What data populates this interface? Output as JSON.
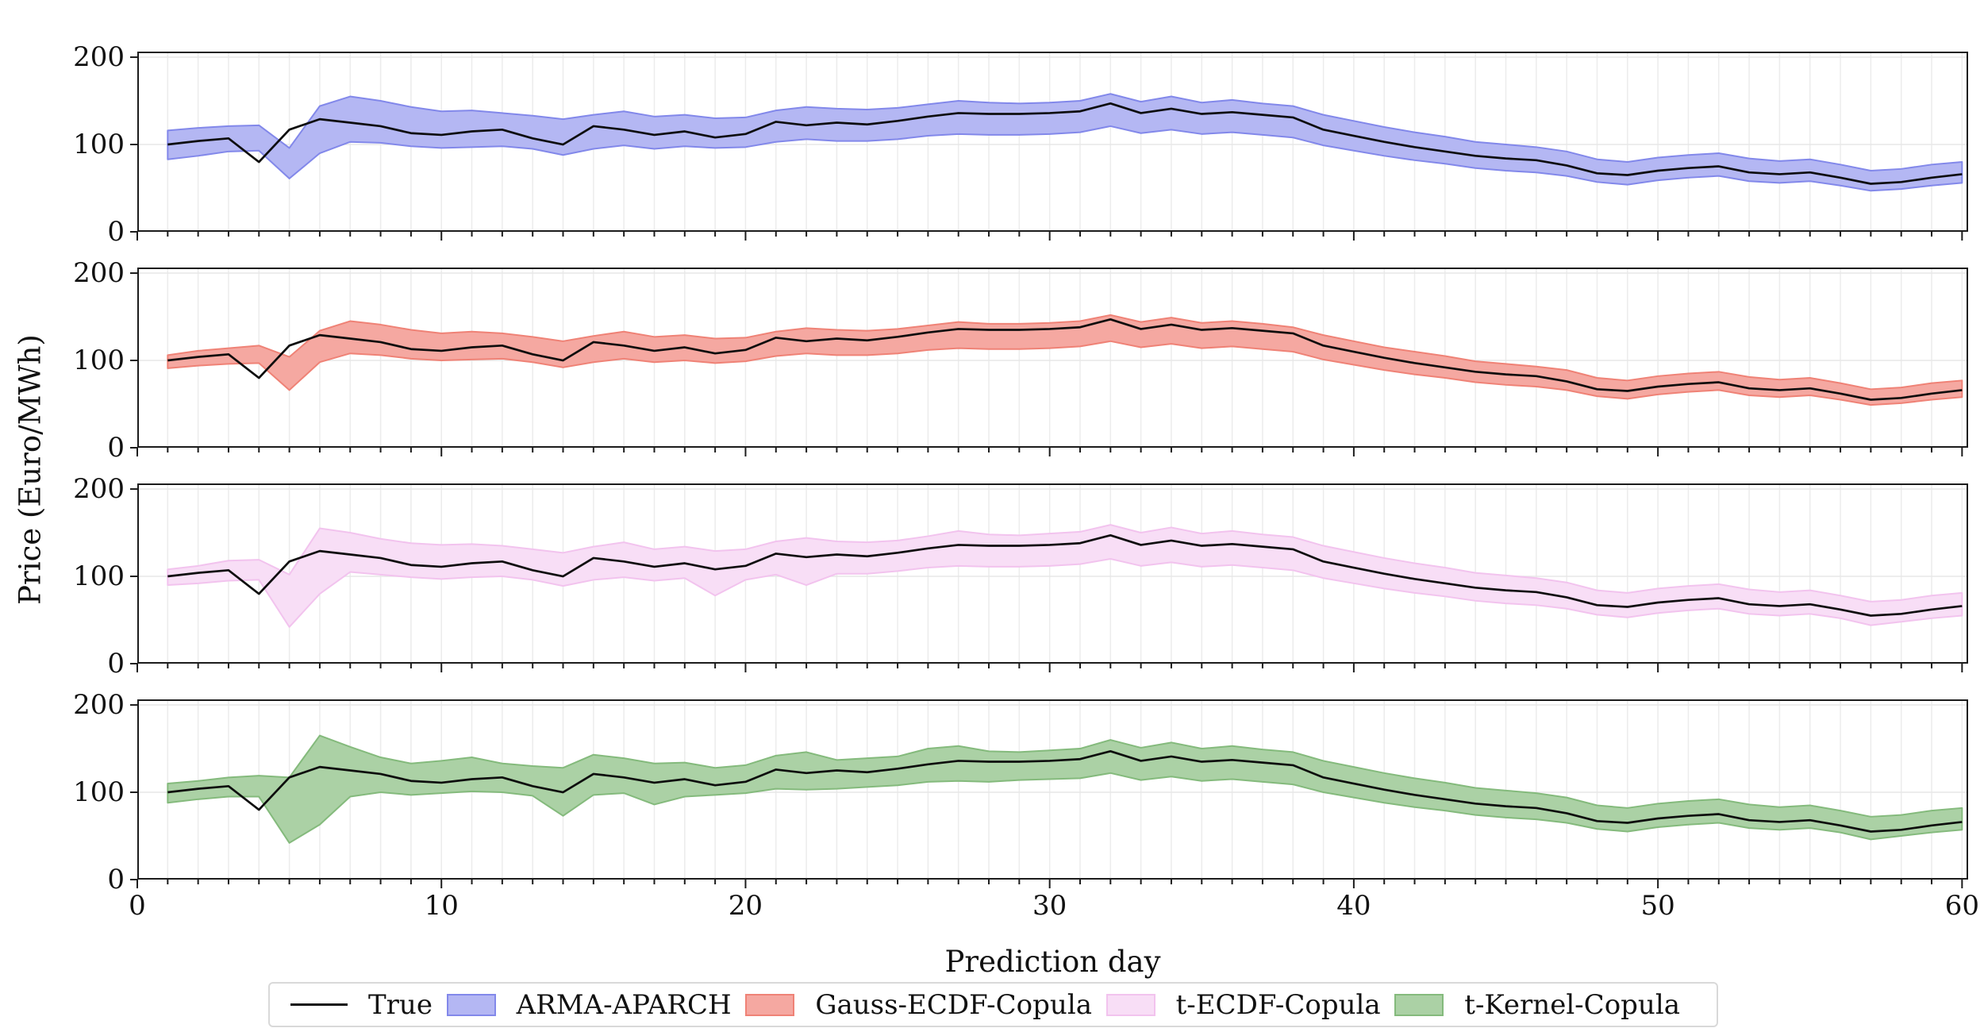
{
  "figure": {
    "ylabel": "Price (Euro/MWh)",
    "xlabel": "Prediction day",
    "background": "#ffffff",
    "spine_color": "#1c1c1c",
    "grid_color_vertical": "#ececec",
    "grid_color_horizontal": "#e7e7e7",
    "x_tick_labels": [
      "0",
      "10",
      "20",
      "30",
      "40",
      "50",
      "60"
    ],
    "y_tick_labels": [
      "200",
      "100",
      "0"
    ]
  },
  "legend": {
    "items": [
      {
        "label": "True",
        "type": "line",
        "fill": "#111111",
        "edge": "#111111"
      },
      {
        "label": "ARMA-APARCH",
        "type": "patch",
        "fill": "#b4b7f3",
        "edge": "#8288ea"
      },
      {
        "label": "Gauss-ECDF-Copula",
        "type": "patch",
        "fill": "#f5a8a1",
        "edge": "#ef8276"
      },
      {
        "label": "t-ECDF-Copula",
        "type": "patch",
        "fill": "#f8def6",
        "edge": "#f2c3ee"
      },
      {
        "label": "t-Kernel-Copula",
        "type": "patch",
        "fill": "#abd1a5",
        "edge": "#84ba7c"
      }
    ]
  },
  "chart_data": {
    "type": "line",
    "title": "",
    "xlabel": "Prediction day",
    "ylabel": "Price (Euro/MWh)",
    "xlim": [
      0,
      60.2
    ],
    "ylim": [
      0,
      206.4
    ],
    "x_ticks": [
      0,
      10,
      20,
      30,
      40,
      50,
      60
    ],
    "y_ticks": [
      0,
      100,
      200
    ],
    "grid": true,
    "legend_position": "bottom",
    "x": [
      1,
      2,
      3,
      4,
      5,
      6,
      7,
      8,
      9,
      10,
      11,
      12,
      13,
      14,
      15,
      16,
      17,
      18,
      19,
      20,
      21,
      22,
      23,
      24,
      25,
      26,
      27,
      28,
      29,
      30,
      31,
      32,
      33,
      34,
      35,
      36,
      37,
      38,
      39,
      40,
      41,
      42,
      43,
      44,
      45,
      46,
      47,
      48,
      49,
      50,
      51,
      52,
      53,
      54,
      55,
      56,
      57,
      58,
      59,
      60
    ],
    "true_series": {
      "name": "True",
      "color": "#0d0d0d",
      "values": [
        100,
        104,
        107,
        80,
        117,
        129,
        125,
        121,
        113,
        111,
        115,
        117,
        107,
        100,
        121,
        117,
        111,
        115,
        108,
        112,
        126,
        122,
        125,
        123,
        127,
        132,
        136,
        135,
        135,
        136,
        138,
        147,
        136,
        141,
        135,
        137,
        134,
        131,
        117,
        110,
        103,
        97,
        92,
        87,
        84,
        82,
        76,
        67,
        65,
        70,
        73,
        75,
        68,
        66,
        68,
        62,
        55,
        57,
        62,
        66
      ]
    },
    "panels": [
      {
        "model": "ARMA-APARCH",
        "band_fill": "#b4b7f3",
        "band_edge": "#8288ea",
        "lower": [
          83,
          87,
          92,
          93,
          61,
          90,
          103,
          102,
          98,
          96,
          97,
          98,
          95,
          88,
          95,
          99,
          95,
          98,
          96,
          97,
          103,
          106,
          104,
          104,
          106,
          110,
          112,
          111,
          111,
          112,
          114,
          121,
          113,
          117,
          112,
          114,
          111,
          108,
          99,
          93,
          87,
          82,
          78,
          73,
          70,
          68,
          64,
          57,
          54,
          59,
          62,
          64,
          58,
          56,
          58,
          53,
          47,
          49,
          53,
          56
        ],
        "upper": [
          116,
          119,
          121,
          122,
          96,
          144,
          155,
          150,
          143,
          138,
          139,
          136,
          133,
          129,
          134,
          138,
          132,
          134,
          130,
          131,
          139,
          143,
          141,
          140,
          142,
          146,
          150,
          148,
          147,
          148,
          150,
          158,
          149,
          155,
          148,
          151,
          147,
          144,
          134,
          127,
          120,
          114,
          109,
          103,
          100,
          97,
          92,
          83,
          80,
          85,
          88,
          90,
          84,
          81,
          83,
          77,
          70,
          72,
          77,
          80
        ]
      },
      {
        "model": "Gauss-ECDF-Copula",
        "band_fill": "#f5a8a1",
        "band_edge": "#ef8276",
        "lower": [
          91,
          94,
          96,
          97,
          66,
          98,
          108,
          106,
          102,
          100,
          101,
          102,
          98,
          92,
          98,
          102,
          98,
          100,
          97,
          99,
          105,
          108,
          106,
          106,
          108,
          112,
          114,
          113,
          113,
          114,
          116,
          122,
          115,
          119,
          114,
          116,
          113,
          110,
          101,
          95,
          89,
          84,
          80,
          75,
          72,
          70,
          66,
          59,
          56,
          61,
          64,
          66,
          60,
          58,
          60,
          55,
          49,
          51,
          55,
          58
        ],
        "upper": [
          106,
          111,
          114,
          117,
          104,
          134,
          145,
          141,
          135,
          131,
          133,
          131,
          127,
          122,
          128,
          133,
          127,
          129,
          125,
          126,
          133,
          137,
          135,
          134,
          136,
          140,
          144,
          142,
          142,
          143,
          145,
          152,
          144,
          149,
          143,
          145,
          142,
          138,
          129,
          122,
          115,
          110,
          105,
          99,
          96,
          93,
          89,
          80,
          77,
          82,
          85,
          87,
          81,
          78,
          80,
          74,
          67,
          69,
          74,
          77
        ]
      },
      {
        "model": "t-ECDF-Copula",
        "band_fill": "#f8def6",
        "band_edge": "#f2c3ee",
        "lower": [
          90,
          92,
          95,
          96,
          42,
          80,
          105,
          102,
          99,
          97,
          99,
          100,
          96,
          89,
          96,
          99,
          95,
          98,
          78,
          96,
          102,
          90,
          103,
          103,
          106,
          110,
          112,
          111,
          111,
          112,
          114,
          120,
          112,
          116,
          111,
          113,
          110,
          107,
          98,
          92,
          86,
          81,
          77,
          72,
          69,
          67,
          63,
          56,
          53,
          58,
          61,
          63,
          57,
          55,
          57,
          52,
          44,
          48,
          52,
          55
        ],
        "upper": [
          108,
          112,
          118,
          119,
          102,
          155,
          150,
          143,
          138,
          136,
          137,
          135,
          131,
          127,
          134,
          139,
          131,
          134,
          129,
          131,
          140,
          144,
          140,
          139,
          141,
          146,
          152,
          148,
          147,
          149,
          151,
          159,
          150,
          156,
          149,
          152,
          148,
          145,
          135,
          128,
          121,
          115,
          110,
          104,
          101,
          98,
          93,
          84,
          81,
          86,
          89,
          91,
          85,
          82,
          84,
          78,
          71,
          73,
          78,
          81
        ]
      },
      {
        "model": "t-Kernel-Copula",
        "band_fill": "#abd1a5",
        "band_edge": "#84ba7c",
        "lower": [
          88,
          92,
          95,
          95,
          42,
          63,
          95,
          100,
          97,
          99,
          101,
          100,
          96,
          73,
          97,
          99,
          86,
          95,
          97,
          99,
          104,
          103,
          104,
          106,
          108,
          112,
          113,
          112,
          114,
          115,
          116,
          122,
          114,
          118,
          113,
          115,
          112,
          109,
          100,
          94,
          88,
          83,
          79,
          74,
          71,
          69,
          65,
          58,
          55,
          60,
          63,
          65,
          59,
          57,
          59,
          54,
          46,
          50,
          54,
          57
        ],
        "upper": [
          110,
          113,
          117,
          119,
          117,
          165,
          152,
          140,
          133,
          136,
          140,
          133,
          130,
          128,
          143,
          139,
          133,
          134,
          128,
          131,
          142,
          146,
          137,
          139,
          141,
          150,
          153,
          147,
          146,
          148,
          150,
          160,
          151,
          157,
          150,
          153,
          149,
          146,
          136,
          129,
          122,
          116,
          111,
          105,
          102,
          99,
          94,
          85,
          82,
          87,
          90,
          92,
          86,
          83,
          85,
          79,
          72,
          74,
          79,
          82
        ]
      }
    ]
  }
}
